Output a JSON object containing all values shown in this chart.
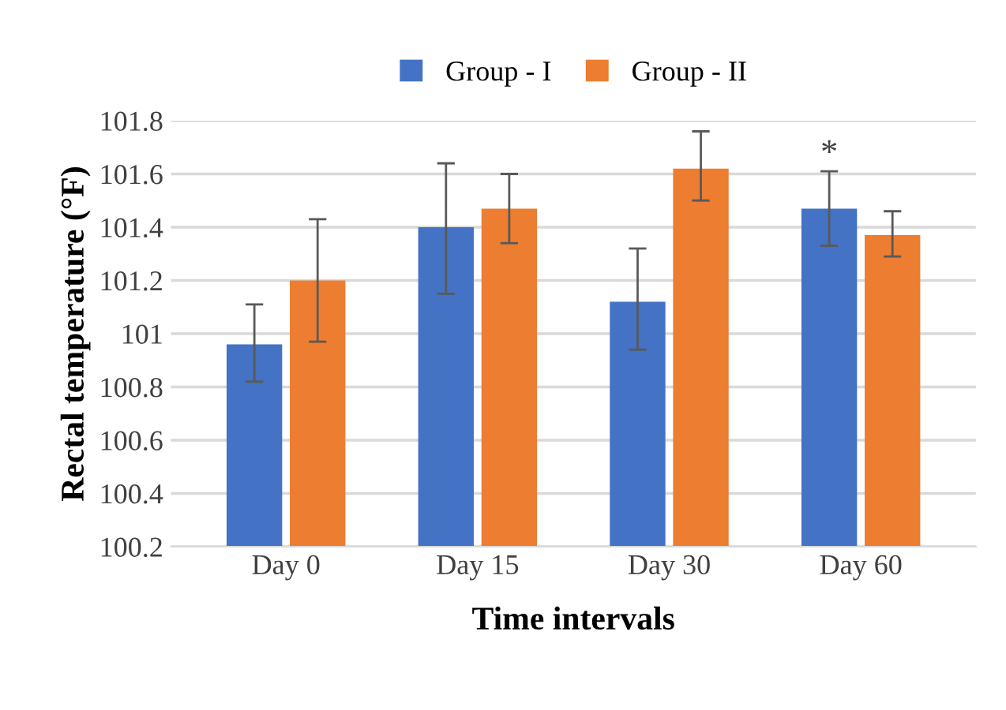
{
  "chart_data": {
    "type": "bar",
    "xlabel": "Time intervals",
    "ylabel": "Rectal temperature (°F)",
    "categories": [
      "Day 0",
      "Day 15",
      "Day 30",
      "Day 60"
    ],
    "series": [
      {
        "name": "Group - I",
        "color": "#4472c4",
        "values": [
          100.96,
          101.4,
          101.12,
          101.47
        ],
        "errors": [
          [
            100.82,
            101.11
          ],
          [
            101.15,
            101.64
          ],
          [
            100.94,
            101.32
          ],
          [
            101.33,
            101.61
          ]
        ]
      },
      {
        "name": "Group - II",
        "color": "#ed7d31",
        "values": [
          101.2,
          101.47,
          101.62,
          101.37
        ],
        "errors": [
          [
            100.97,
            101.43
          ],
          [
            101.34,
            101.6
          ],
          [
            101.5,
            101.76
          ],
          [
            101.29,
            101.46
          ]
        ]
      }
    ],
    "ylim": [
      100.2,
      101.8
    ],
    "yticks": [
      100.2,
      100.4,
      100.6,
      100.8,
      {
        "value": 101,
        "label": "101"
      },
      101.2,
      101.4,
      101.6,
      101.8
    ],
    "annotations": [
      "*"
    ],
    "grid": "y",
    "legend": "top"
  }
}
